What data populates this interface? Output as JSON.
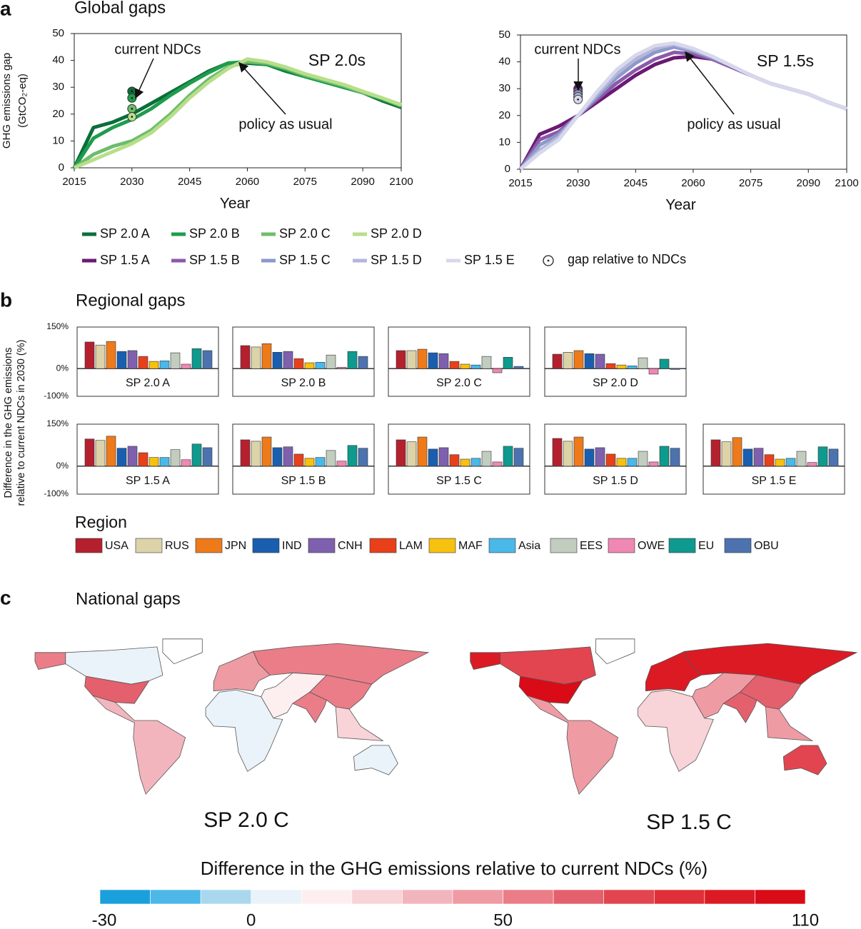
{
  "panels": [
    {
      "label": "a",
      "title": "Global gaps"
    },
    {
      "label": "b",
      "title": "Regional gaps"
    },
    {
      "label": "c",
      "title": "National gaps"
    }
  ],
  "chart_data": [
    {
      "type": "line",
      "xlabel": "Year",
      "ylabel": [
        "GHG emissions gap",
        "(GtCO₂-eq)"
      ],
      "scenario_label": "SP 2.0s",
      "ndc_label": "current NDCs",
      "pau_label": "policy as usual",
      "x": [
        2015,
        2020,
        2025,
        2030,
        2035,
        2040,
        2045,
        2050,
        2055,
        2060,
        2065,
        2070,
        2075,
        2080,
        2085,
        2090,
        2095,
        2100
      ],
      "xlim": [
        2015,
        2100
      ],
      "xticks": [
        2015,
        2030,
        2045,
        2060,
        2075,
        2090,
        2100
      ],
      "ylim": [
        0,
        50
      ],
      "yticks": [
        0,
        10,
        20,
        30,
        40,
        50
      ],
      "series": [
        {
          "name": "SP 2.0 A",
          "color": "#0b6e3a",
          "values": [
            0,
            15,
            17,
            20,
            24,
            28,
            32,
            36,
            39,
            39,
            38.5,
            36,
            34,
            32,
            30,
            28,
            25,
            22.5
          ]
        },
        {
          "name": "SP 2.0 B",
          "color": "#1e9c4c",
          "values": [
            0,
            11,
            15,
            18,
            22,
            27,
            31.5,
            35.5,
            39,
            39.5,
            38.5,
            36.5,
            34,
            32,
            30,
            28,
            25.5,
            23
          ]
        },
        {
          "name": "SP 2.0 C",
          "color": "#6dbd6b",
          "values": [
            0,
            5,
            8,
            10,
            14,
            20,
            27,
            33,
            37.5,
            39.5,
            39,
            37,
            34.5,
            32.5,
            30.5,
            28,
            26,
            23
          ]
        },
        {
          "name": "SP 2.0 D",
          "color": "#b8de8a",
          "values": [
            0,
            3,
            6,
            9,
            13,
            19,
            26,
            32,
            37,
            40.5,
            39.5,
            37.5,
            35,
            33,
            31,
            28.5,
            26,
            23.5
          ]
        }
      ],
      "points": {
        "name": "gap relative to NDCs",
        "x": 2030,
        "values": [
          28.5,
          26,
          22,
          19
        ]
      }
    },
    {
      "type": "line",
      "xlabel": "Year",
      "scenario_label": "SP 1.5s",
      "ndc_label": "current NDCs",
      "pau_label": "policy as usual",
      "x": [
        2015,
        2020,
        2025,
        2030,
        2035,
        2040,
        2045,
        2050,
        2055,
        2060,
        2065,
        2070,
        2075,
        2080,
        2085,
        2090,
        2095,
        2100
      ],
      "xlim": [
        2015,
        2100
      ],
      "xticks": [
        2015,
        2030,
        2045,
        2060,
        2075,
        2090,
        2100
      ],
      "ylim": [
        0,
        50
      ],
      "yticks": [
        0,
        10,
        20,
        30,
        40,
        50
      ],
      "series": [
        {
          "name": "SP 1.5 A",
          "color": "#6a1a75",
          "values": [
            0,
            13,
            16,
            20,
            25,
            30,
            35,
            39,
            41.5,
            42,
            41,
            38,
            35,
            32,
            30,
            28,
            25,
            22.5
          ]
        },
        {
          "name": "SP 1.5 B",
          "color": "#8c5aa8",
          "values": [
            0,
            11,
            14,
            20,
            26,
            32,
            37,
            41,
            43.5,
            43,
            41,
            38,
            35,
            32,
            30,
            28,
            25,
            22.5
          ]
        },
        {
          "name": "SP 1.5 C",
          "color": "#8c99c9",
          "values": [
            0,
            9,
            13,
            20,
            27,
            34,
            39.5,
            43.5,
            45.5,
            44,
            41.5,
            38.5,
            35,
            32,
            30,
            28,
            25,
            22.5
          ]
        },
        {
          "name": "SP 1.5 D",
          "color": "#b3b6da",
          "values": [
            0,
            7,
            12,
            20,
            28,
            35.5,
            41,
            45,
            46.5,
            44.5,
            42,
            38.5,
            35,
            32,
            30,
            28,
            25,
            22.5
          ]
        },
        {
          "name": "SP 1.5 E",
          "color": "#d8d8ec",
          "values": [
            0,
            6,
            11,
            20,
            29,
            37,
            42.5,
            46,
            47,
            45,
            42,
            38.5,
            35,
            32,
            30,
            28,
            25,
            22.5
          ]
        }
      ],
      "points": {
        "x": 2030,
        "values": [
          30,
          29,
          28,
          27,
          26
        ]
      }
    },
    {
      "type": "facet-bar",
      "ylabel": [
        "Difference in the GHG emissions",
        "relative to current NDCs in 2030 (%)"
      ],
      "legend_title": "Region",
      "categories": [
        "USA",
        "RUS",
        "JPN",
        "IND",
        "CNH",
        "LAM",
        "MAF",
        "Asia",
        "EES",
        "OWE",
        "EU",
        "OBU"
      ],
      "colors": [
        "#b5202e",
        "#ddd3a8",
        "#ee7a1a",
        "#1a5eb0",
        "#7e60ae",
        "#e8401a",
        "#f7c10f",
        "#4ab8e8",
        "#c2cdbf",
        "#ef88b3",
        "#0e9a8e",
        "#4c72b0"
      ],
      "ylim": [
        -100,
        150
      ],
      "yticks": [
        {
          "value": -100,
          "label": "-100%"
        },
        {
          "value": 0,
          "label": "0%"
        },
        {
          "value": 150,
          "label": "150%"
        }
      ],
      "series": [
        {
          "name": "SP 2.0 A",
          "values": [
            96,
            85,
            98,
            62,
            65,
            44,
            26,
            28,
            57,
            16,
            72,
            65
          ]
        },
        {
          "name": "SP 2.0 B",
          "values": [
            83,
            78,
            90,
            59,
            62,
            36,
            21,
            23,
            49,
            5,
            62,
            44
          ]
        },
        {
          "name": "SP 2.0 C",
          "values": [
            65,
            65,
            70,
            57,
            54,
            26,
            16,
            13,
            44,
            -15,
            41,
            8
          ]
        },
        {
          "name": "SP 2.0 D",
          "values": [
            52,
            59,
            65,
            54,
            52,
            18,
            13,
            10,
            39,
            -20,
            34,
            -3
          ]
        },
        {
          "name": "SP 1.5 A",
          "values": [
            97,
            92,
            107,
            64,
            71,
            48,
            31,
            31,
            59,
            23,
            79,
            66
          ]
        },
        {
          "name": "SP 1.5 B",
          "values": [
            94,
            89,
            104,
            66,
            69,
            43,
            28,
            31,
            56,
            18,
            74,
            64
          ]
        },
        {
          "name": "SP 1.5 C",
          "values": [
            94,
            87,
            104,
            61,
            66,
            41,
            25,
            28,
            53,
            15,
            71,
            64
          ]
        },
        {
          "name": "SP 1.5 D",
          "values": [
            99,
            89,
            104,
            61,
            66,
            43,
            28,
            28,
            53,
            15,
            71,
            64
          ]
        },
        {
          "name": "SP 1.5 E",
          "values": [
            94,
            87,
            102,
            61,
            64,
            41,
            25,
            28,
            53,
            13,
            69,
            61
          ]
        }
      ]
    },
    {
      "type": "map",
      "title": "SP 2.0 C",
      "values": [
        55,
        5,
        60,
        30,
        40,
        55,
        5,
        10,
        50,
        50,
        20,
        5
      ]
    },
    {
      "type": "map",
      "title": "SP 1.5 C",
      "values": [
        95,
        70,
        105,
        45,
        90,
        95,
        20,
        40,
        60,
        65,
        40,
        70
      ]
    }
  ],
  "colorbar": {
    "title": "Difference in the GHG emissions relative to current NDCs (%)",
    "bins": [
      -30,
      -20,
      -10,
      0,
      10,
      20,
      30,
      40,
      50,
      60,
      70,
      80,
      90,
      100,
      110
    ],
    "colors": [
      "#1aa0dc",
      "#4db8e8",
      "#a9d8ee",
      "#eaf3f9",
      "#fdeef0",
      "#f8d3d8",
      "#f3b5bd",
      "#ef9ba4",
      "#ea7d88",
      "#e4606d",
      "#e24550",
      "#df2f38",
      "#dc1a24",
      "#d90b17"
    ],
    "ticks": [
      -30,
      0,
      50,
      110
    ]
  }
}
